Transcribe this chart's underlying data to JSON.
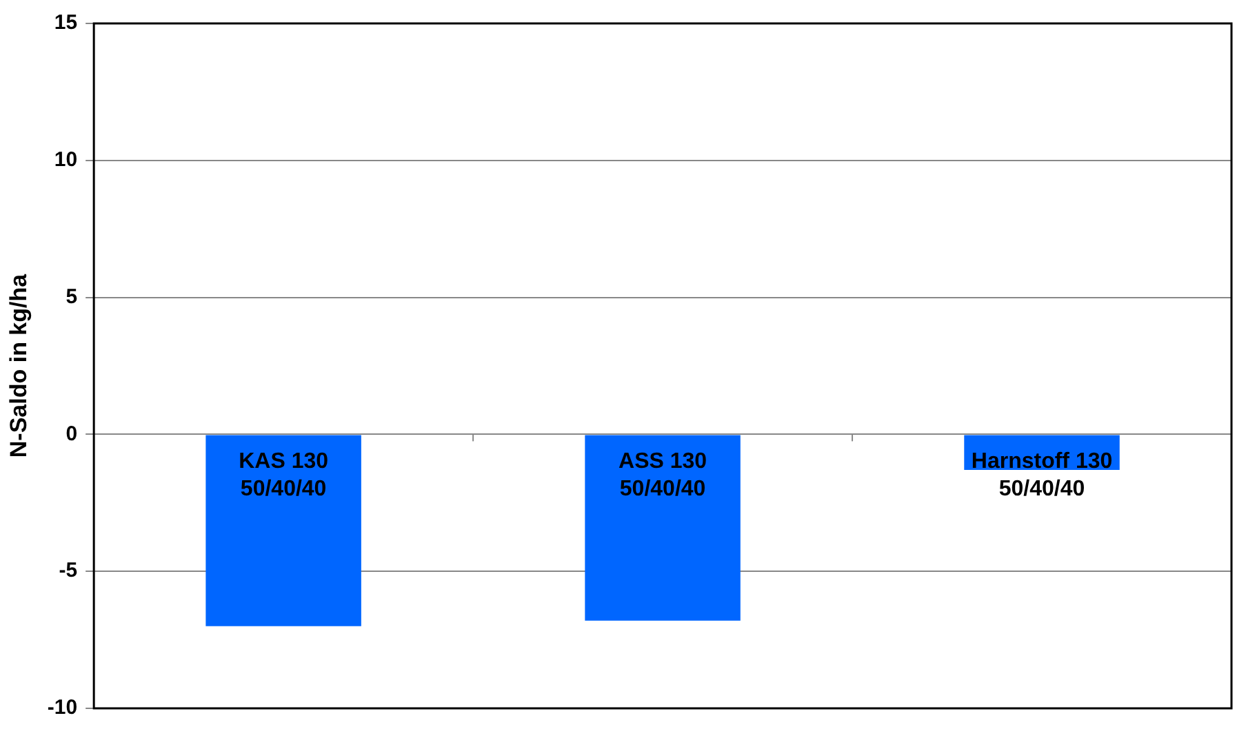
{
  "chart_data": {
    "type": "bar",
    "ylabel": "N-Saldo in kg/ha",
    "categories": [
      "KAS 130\n50/40/40",
      "ASS 130\n50/40/40",
      "Harnstoff 130\n50/40/40"
    ],
    "values": [
      -7.0,
      -6.8,
      -1.3
    ],
    "color": "#0066ff",
    "ylim": [
      -10,
      15
    ],
    "yticks": [
      -10,
      -5,
      0,
      5,
      10,
      15
    ],
    "grid": "y",
    "legend": false
  }
}
